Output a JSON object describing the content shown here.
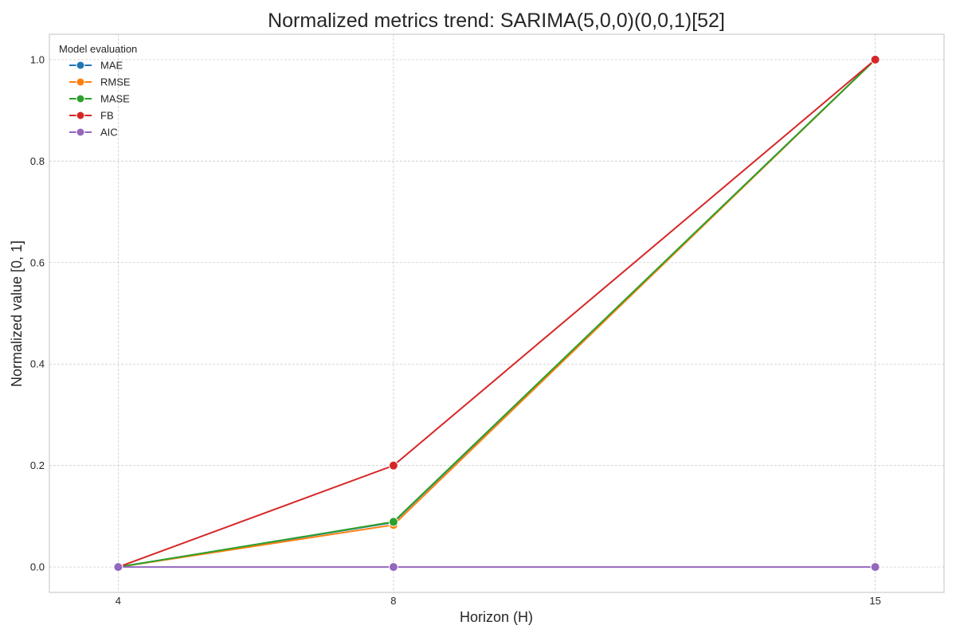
{
  "chart_data": {
    "type": "line",
    "title": "Normalized metrics trend: SARIMA(5,0,0)(0,0,1)[52]",
    "xlabel": "Horizon (H)",
    "ylabel": "Normalized value [0, 1]",
    "x": [
      4,
      8,
      15
    ],
    "xticks": [
      "4",
      "8",
      "15"
    ],
    "yticks": [
      "0.0",
      "0.2",
      "0.4",
      "0.6",
      "0.8",
      "1.0"
    ],
    "ylim": [
      -0.05,
      1.05
    ],
    "grid": true,
    "legend": {
      "title": "Model evaluation",
      "placement": "top-left"
    },
    "series": [
      {
        "name": "MAE",
        "color": "#1f77b4",
        "values": [
          0.0,
          0.088,
          1.0
        ]
      },
      {
        "name": "RMSE",
        "color": "#ff7f0e",
        "values": [
          0.0,
          0.083,
          1.0
        ]
      },
      {
        "name": "MASE",
        "color": "#2ca02c",
        "values": [
          0.0,
          0.089,
          1.0
        ]
      },
      {
        "name": "FB",
        "color": "#d62728",
        "values": [
          0.0,
          0.2,
          1.0
        ]
      },
      {
        "name": "AIC",
        "color": "#9467bd",
        "values": [
          0.0,
          0.0,
          0.0
        ]
      }
    ]
  }
}
